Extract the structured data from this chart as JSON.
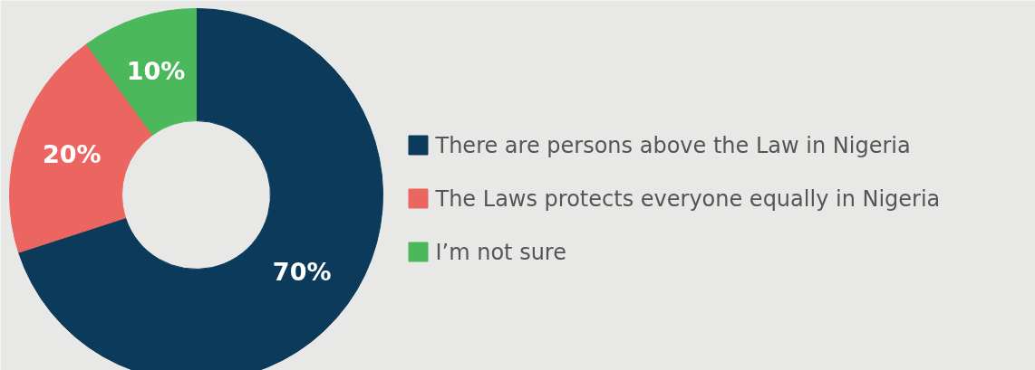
{
  "chart_data": {
    "type": "donut",
    "categories": [
      "There are persons above the Law in Nigeria",
      "The Laws protects everyone equally in Nigeria",
      "I’m not sure"
    ],
    "values": [
      70,
      20,
      10
    ],
    "colors": [
      "#0b3a5a",
      "#eb6660",
      "#4cb85c"
    ],
    "value_labels": [
      "70%",
      "20%",
      "10%"
    ],
    "legend": "right"
  }
}
